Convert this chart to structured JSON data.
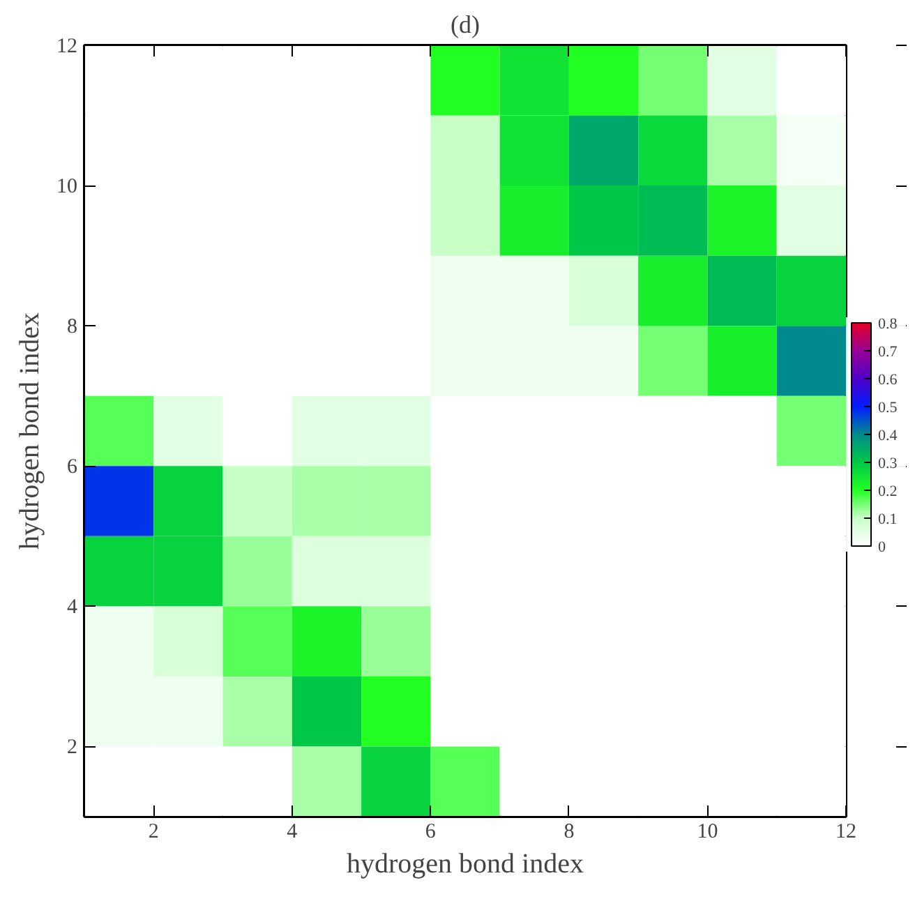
{
  "chart_data": {
    "type": "heatmap",
    "title": "(d)",
    "xlabel": "hydrogen bond index",
    "ylabel": "hydrogen bond index",
    "x": [
      1.5,
      2.5,
      3.5,
      4.5,
      5.5,
      6.5,
      7.5,
      8.5,
      9.5,
      10.5,
      11.5
    ],
    "y": [
      11.5,
      10.5,
      9.5,
      8.5,
      7.5,
      6.5,
      5.5,
      4.5,
      3.5,
      2.5,
      1.5
    ],
    "xlim": [
      1,
      12
    ],
    "xticks": [
      2,
      4,
      6,
      8,
      10,
      12
    ],
    "ylim": [
      1,
      12
    ],
    "yticks": [
      2,
      4,
      6,
      8,
      10,
      12
    ],
    "clim": [
      0,
      0.8
    ],
    "cticks": [
      0,
      0.1,
      0.2,
      0.3,
      0.4,
      0.5,
      0.6,
      0.7,
      0.8
    ],
    "cells": [
      [
        0,
        0,
        0,
        0,
        0,
        0.2,
        0.25,
        0.2,
        0.15,
        0.05,
        0
      ],
      [
        0,
        0,
        0,
        0,
        0,
        0.1,
        0.25,
        0.35,
        0.27,
        0.12,
        0.02
      ],
      [
        0,
        0,
        0,
        0,
        0,
        0.1,
        0.23,
        0.3,
        0.32,
        0.22,
        0.05
      ],
      [
        0,
        0,
        0,
        0,
        0,
        0.03,
        0.03,
        0.07,
        0.23,
        0.32,
        0.28
      ],
      [
        0,
        0,
        0,
        0,
        0,
        0.03,
        0.03,
        0.03,
        0.15,
        0.23,
        0.4
      ],
      [
        0.17,
        0.05,
        0,
        0.05,
        0.05,
        0,
        0,
        0,
        0,
        0,
        0.15
      ],
      [
        0.48,
        0.28,
        0.1,
        0.12,
        0.12,
        0,
        0,
        0,
        0,
        0,
        0
      ],
      [
        0.28,
        0.28,
        0.13,
        0.06,
        0.06,
        0,
        0,
        0,
        0,
        0,
        0
      ],
      [
        0.03,
        0.07,
        0.17,
        0.22,
        0.13,
        0,
        0,
        0,
        0,
        0,
        0
      ],
      [
        0.03,
        0.03,
        0.12,
        0.3,
        0.2,
        0,
        0,
        0,
        0,
        0,
        0
      ],
      [
        0,
        0,
        0,
        0.12,
        0.28,
        0.17,
        0,
        0,
        0,
        0,
        0
      ]
    ]
  }
}
